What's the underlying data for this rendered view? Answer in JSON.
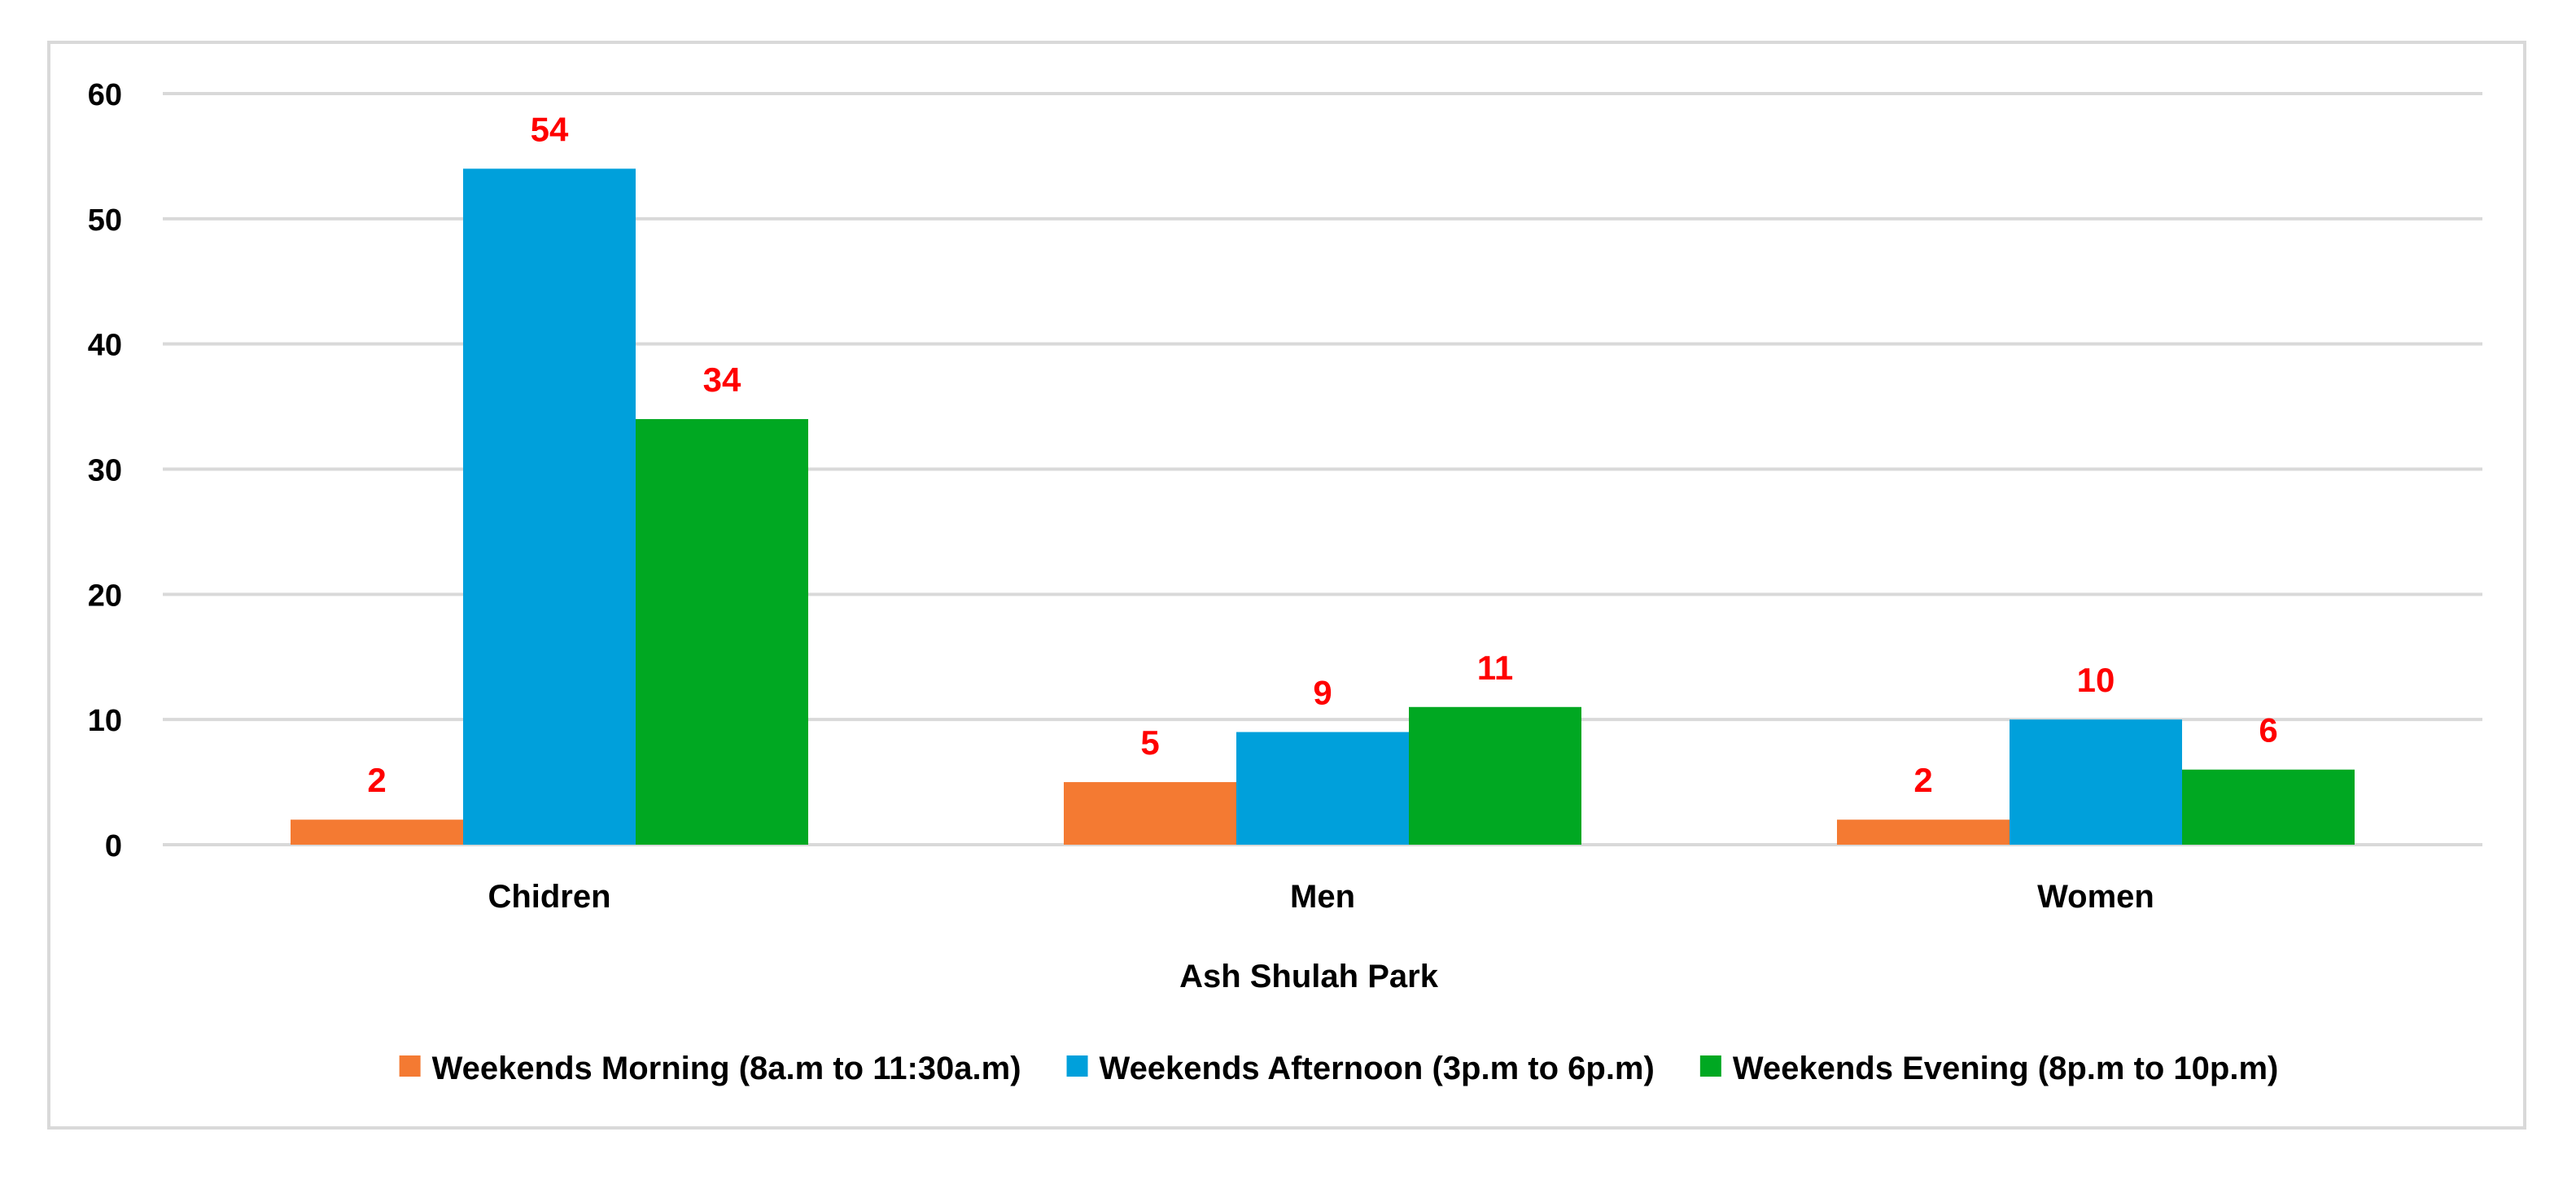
{
  "chart_data": {
    "type": "bar",
    "title": "",
    "xlabel": "Ash Shulah Park",
    "ylabel": "",
    "categories": [
      "Chidren",
      "Men",
      "Women"
    ],
    "series": [
      {
        "name": "Weekends Morning (8a.m to 11:30a.m)",
        "values": [
          2,
          5,
          2
        ],
        "color": "#f47a32"
      },
      {
        "name": "Weekends Afternoon (3p.m to 6p.m)",
        "values": [
          54,
          9,
          10
        ],
        "color": "#00a0db"
      },
      {
        "name": "Weekends Evening (8p.m to 10p.m)",
        "values": [
          34,
          11,
          6
        ],
        "color": "#00a822"
      }
    ],
    "ylim": [
      0,
      60
    ],
    "yticks": [
      0,
      10,
      20,
      30,
      40,
      50,
      60
    ],
    "grid": true,
    "legend": "bottom",
    "data_label_color": "#ff0000",
    "gridline_color": "#d9d9d9"
  }
}
